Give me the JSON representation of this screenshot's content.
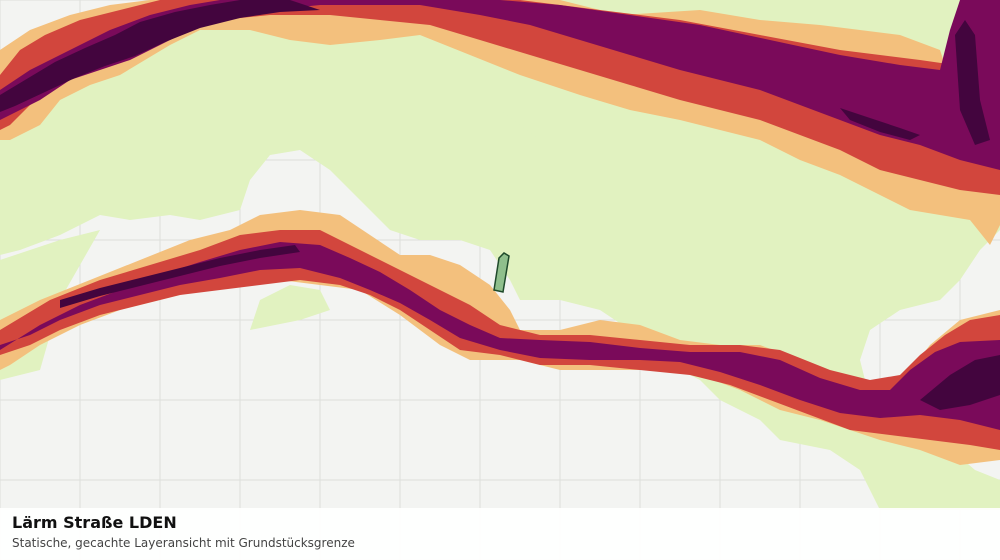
{
  "map": {
    "title": "Lärm Straße LDEN",
    "subtitle": "Statische, gecachte Layeransicht mit Grundstücksgrenze",
    "colors": {
      "background": "#f3f4f2",
      "grid": "#dcdedb",
      "band_light": "#e1f2c0",
      "band_orange": "#f3c07d",
      "band_red": "#d2463d",
      "band_purple": "#7a0a5a",
      "band_darkpurple": "#43053e",
      "parcel_fill": "#8fbf8c",
      "parcel_stroke": "#1f4a2b"
    },
    "layers": [
      {
        "name": "noise-band-light",
        "color_key": "band_light"
      },
      {
        "name": "noise-band-orange",
        "color_key": "band_orange"
      },
      {
        "name": "noise-band-red",
        "color_key": "band_red"
      },
      {
        "name": "noise-band-purple",
        "color_key": "band_purple"
      },
      {
        "name": "noise-band-darkpurple",
        "color_key": "band_darkpurple"
      }
    ]
  }
}
